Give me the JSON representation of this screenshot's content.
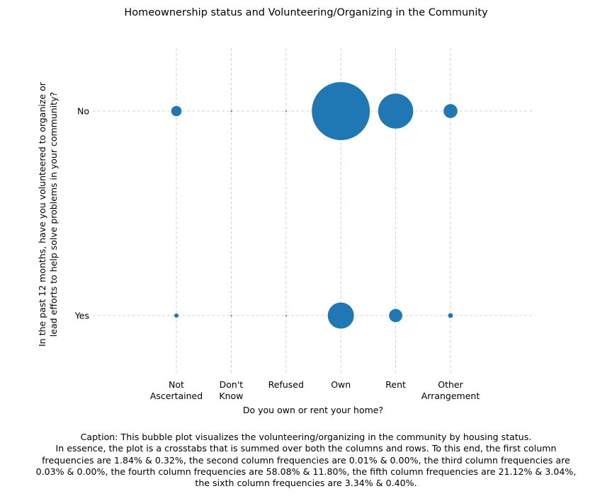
{
  "chart_data": {
    "type": "scatter",
    "title": "Homeownership status and Volunteering/Organizing in the Community",
    "xlabel": "Do you own or rent your home?",
    "ylabel_lines": [
      "In the past 12 months, have you volunteered to organize or",
      "lead efforts to help solve problems in your community?"
    ],
    "categories": [
      {
        "lines": [
          "Not",
          "Ascertained"
        ]
      },
      {
        "lines": [
          "Don't",
          "Know"
        ]
      },
      {
        "lines": [
          "Refused"
        ]
      },
      {
        "lines": [
          "Own"
        ]
      },
      {
        "lines": [
          "Rent"
        ]
      },
      {
        "lines": [
          "Other",
          "Arrangement"
        ]
      }
    ],
    "y_categories": [
      "Yes",
      "No"
    ],
    "grid": true,
    "bubble_color": "#1f77b4",
    "grid_color": "#c8c8c8",
    "series": [
      {
        "y": "No",
        "values": [
          1.84,
          0.01,
          0.03,
          58.08,
          21.12,
          3.34
        ]
      },
      {
        "y": "Yes",
        "values": [
          0.32,
          0.0,
          0.0,
          11.8,
          3.04,
          0.4
        ]
      }
    ]
  },
  "caption": "Caption: This bubble plot visualizes the volunteering/organizing in the community by housing status.\nIn essence, the plot is a crosstabs that is summed over both the columns and rows. To this end, the first column\nfrequencies are 1.84% & 0.32%, the second column frequencies are 0.01% & 0.00%, the third column frequencies are\n0.03% & 0.00%, the fourth column frequencies are 58.08% & 11.80%, the fifth column frequencies are 21.12% & 3.04%,\nthe sixth column frequencies are 3.34% & 0.40%."
}
